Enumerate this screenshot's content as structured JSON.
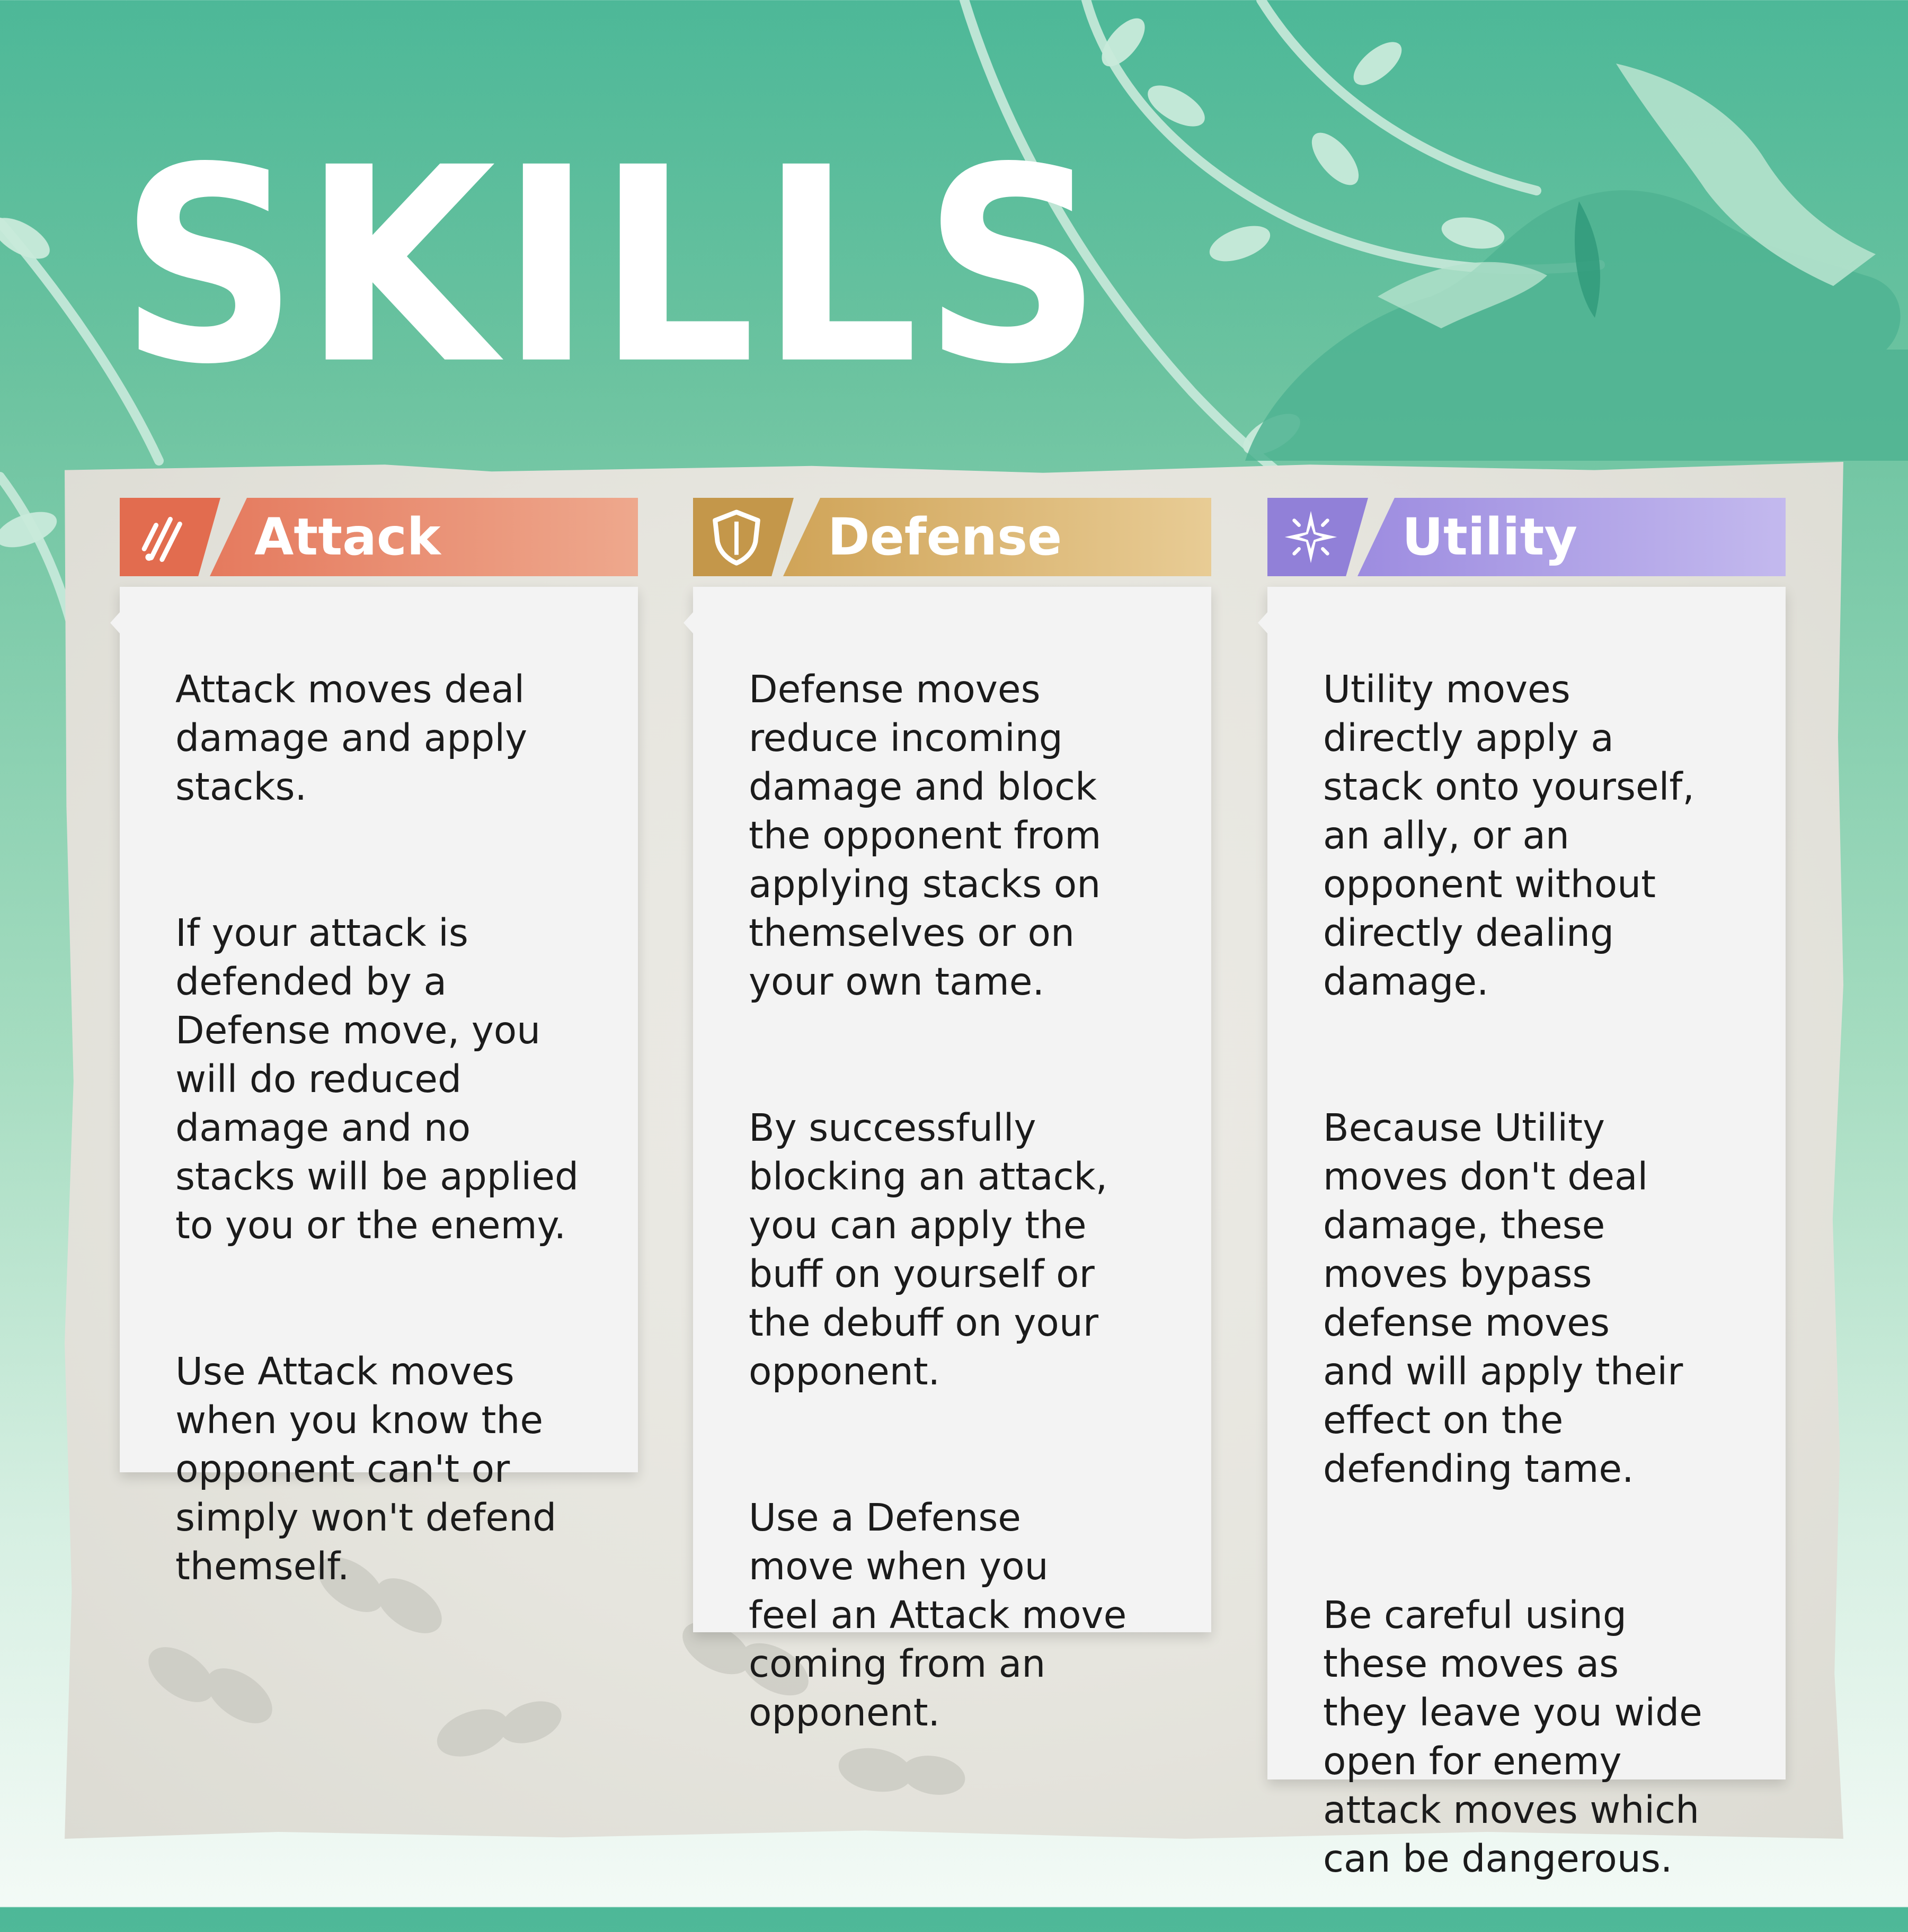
{
  "title": "SKILLS",
  "columns": [
    {
      "label": "Attack",
      "icon": "claw-slash-icon",
      "colors": {
        "icon_bg": "#e26c4f",
        "bar_start": "#e57a5e",
        "bar_end": "#eea88d"
      },
      "paragraphs": [
        "Attack moves deal\ndamage and apply\nstacks.",
        "If your attack is\ndefended by a\nDefense move, you\nwill do reduced\ndamage and no\nstacks will be applied\nto you or the enemy.",
        "Use Attack moves\nwhen you know the\nopponent can't or\nsimply won't defend\nthemself."
      ]
    },
    {
      "label": "Defense",
      "icon": "shield-icon",
      "colors": {
        "icon_bg": "#c4974a",
        "bar_start": "#d0a458",
        "bar_end": "#e8cc95"
      },
      "paragraphs": [
        "Defense moves\nreduce incoming\ndamage and block\nthe opponent from\napplying stacks on\nthemselves or on\nyour own tame.",
        "By successfully\nblocking an attack,\nyou can apply the\nbuff on yourself or\nthe debuff on your\nopponent.",
        "Use a Defense\nmove when you\nfeel an Attack move\ncoming from an\nopponent."
      ]
    },
    {
      "label": "Utility",
      "icon": "sparkle-star-icon",
      "colors": {
        "icon_bg": "#9180d8",
        "bar_start": "#9d8ce0",
        "bar_end": "#c3b9ee"
      },
      "paragraphs": [
        "Utility moves\ndirectly apply a\nstack onto yourself,\nan ally, or an\nopponent without\ndirectly dealing\ndamage.",
        "Because Utility\nmoves don't deal\ndamage, these\nmoves bypass\ndefense moves\nand will apply their\neffect on the\ndefending tame.",
        "Be careful using\nthese moves as\nthey leave you wide\nopen for enemy\nattack moves which\ncan be dangerous."
      ]
    }
  ]
}
